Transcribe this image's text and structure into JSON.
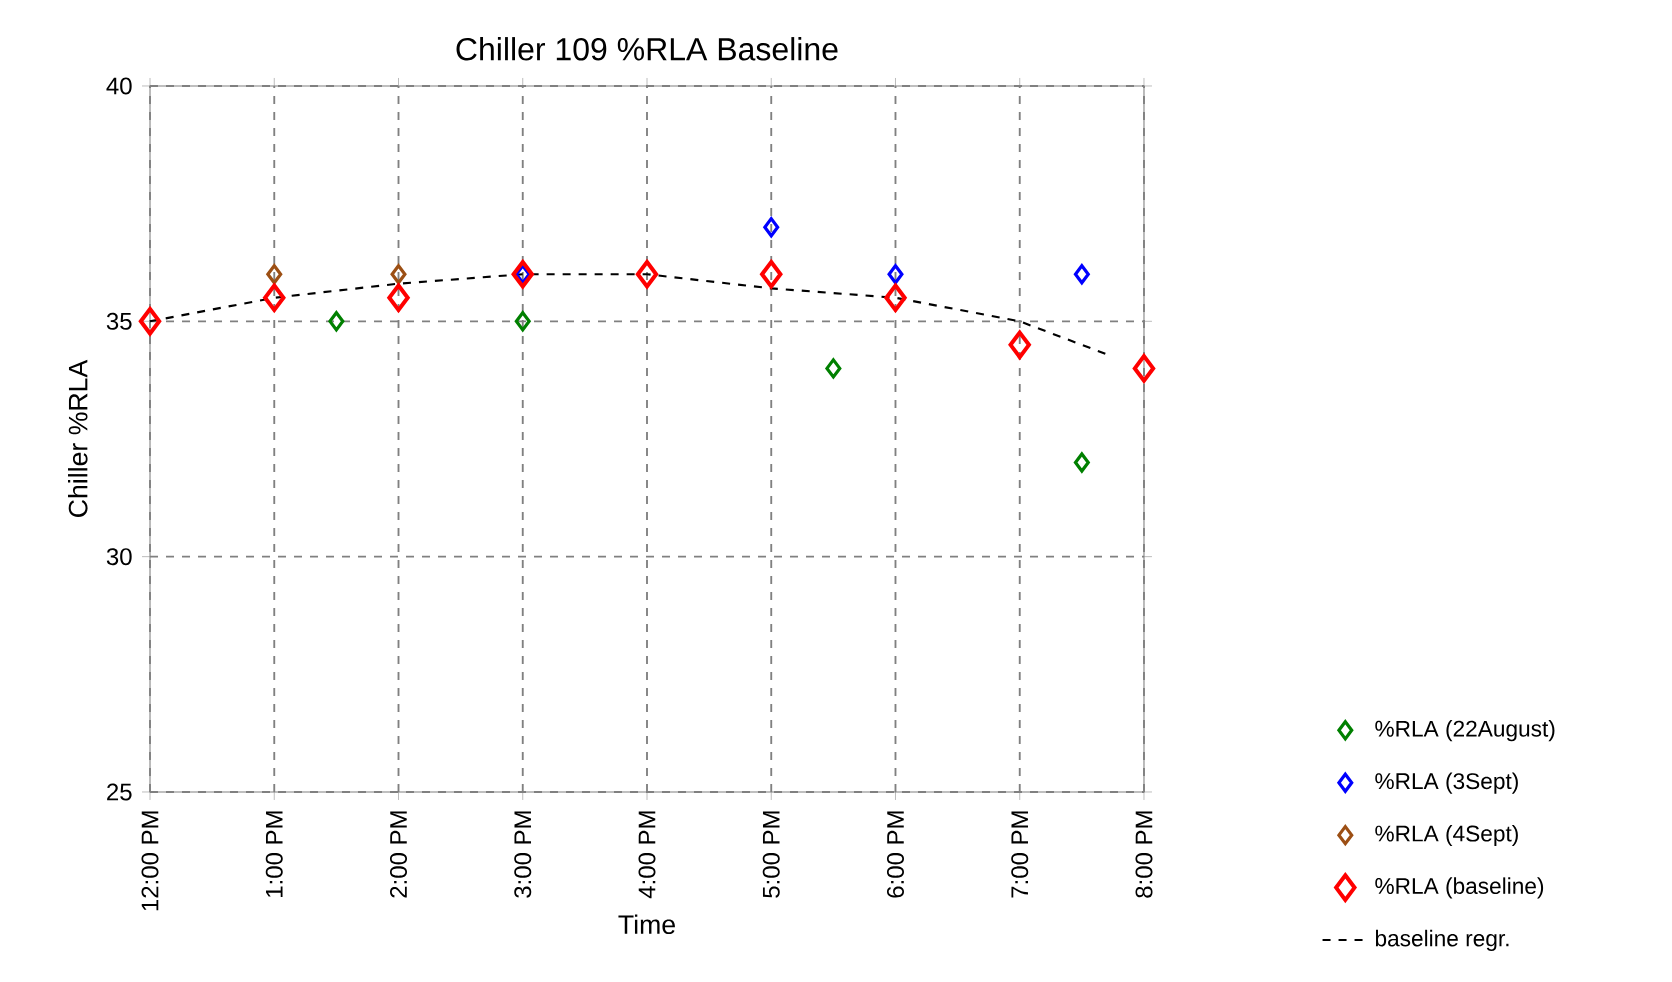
{
  "chart_data": {
    "type": "scatter",
    "title": "Chiller 109 %RLA Baseline",
    "xlabel": "Time",
    "ylabel": "Chiller %RLA",
    "xlim": [
      12,
      20
    ],
    "ylim": [
      25,
      40
    ],
    "xticks": [
      {
        "value": 12,
        "label": "12:00 PM"
      },
      {
        "value": 13,
        "label": "1:00 PM"
      },
      {
        "value": 14,
        "label": "2:00 PM"
      },
      {
        "value": 15,
        "label": "3:00 PM"
      },
      {
        "value": 16,
        "label": "4:00 PM"
      },
      {
        "value": 17,
        "label": "5:00 PM"
      },
      {
        "value": 18,
        "label": "6:00 PM"
      },
      {
        "value": 19,
        "label": "7:00 PM"
      },
      {
        "value": 20,
        "label": "8:00 PM"
      }
    ],
    "yticks": [
      25,
      30,
      35,
      40
    ],
    "grid": true,
    "legend": "right",
    "marker": "diamond",
    "series": [
      {
        "name": "%RLA (22August)",
        "color": "#008000",
        "x": [
          13.5,
          15,
          17.5,
          19.5
        ],
        "values": [
          35,
          35,
          34,
          32
        ]
      },
      {
        "name": "%RLA (3Sept)",
        "color": "#0000ff",
        "x": [
          15,
          17,
          18,
          19.5
        ],
        "values": [
          36,
          37,
          36,
          36
        ]
      },
      {
        "name": "%RLA (4Sept)",
        "color": "#9c4f14",
        "x": [
          13,
          14
        ],
        "values": [
          36,
          36
        ]
      },
      {
        "name": "%RLA (baseline)",
        "color": "#ff0000",
        "x": [
          12,
          13,
          14,
          15,
          16,
          17,
          18,
          19,
          20
        ],
        "values": [
          35,
          35.5,
          35.5,
          36,
          36,
          36,
          35.5,
          34.5,
          34
        ]
      },
      {
        "name": "baseline regr.",
        "type": "line",
        "marker": "none",
        "line_style": "dashed",
        "color": "#000000",
        "x": [
          12,
          13,
          14,
          15,
          16,
          17,
          18,
          19,
          19.7
        ],
        "values": [
          35,
          35.5,
          35.8,
          36,
          36,
          35.7,
          35.5,
          35,
          34.3
        ]
      }
    ]
  }
}
